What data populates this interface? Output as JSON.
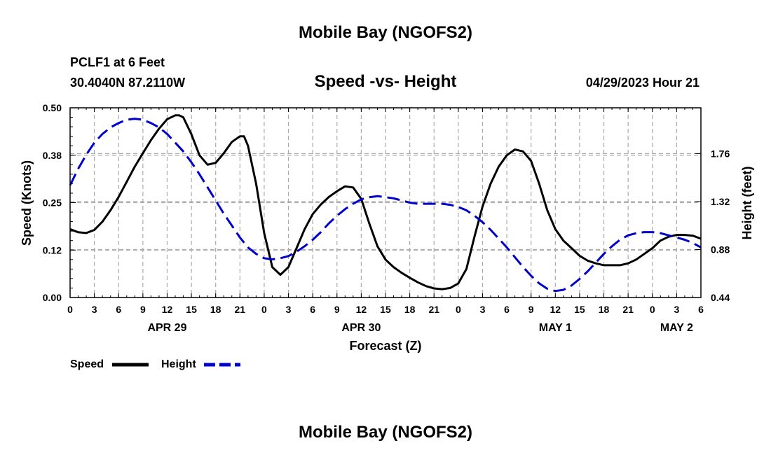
{
  "chart_data": {
    "type": "line",
    "title": "Mobile Bay (NGOFS2)",
    "subtitle": "Speed -vs- Height",
    "station": "PCLF1 at 6 Feet",
    "coords": "30.4040N  87.2110W",
    "timestamp": "04/29/2023 Hour 21",
    "xlabel": "Forecast (Z)",
    "ylabel": "Speed (Knots)",
    "ylabel_right": "Height (feet)",
    "x_range": [
      0,
      78
    ],
    "ylim": [
      0,
      0.5
    ],
    "ylim_right": [
      0.44,
      2.18
    ],
    "x_ticks": [
      {
        "x": 0,
        "label": "0"
      },
      {
        "x": 3,
        "label": "3"
      },
      {
        "x": 6,
        "label": "6"
      },
      {
        "x": 9,
        "label": "9"
      },
      {
        "x": 12,
        "label": "12"
      },
      {
        "x": 15,
        "label": "15"
      },
      {
        "x": 18,
        "label": "18"
      },
      {
        "x": 21,
        "label": "21"
      },
      {
        "x": 24,
        "label": "0"
      },
      {
        "x": 27,
        "label": "3"
      },
      {
        "x": 30,
        "label": "6"
      },
      {
        "x": 33,
        "label": "9"
      },
      {
        "x": 36,
        "label": "12"
      },
      {
        "x": 39,
        "label": "15"
      },
      {
        "x": 42,
        "label": "18"
      },
      {
        "x": 45,
        "label": "21"
      },
      {
        "x": 48,
        "label": "0"
      },
      {
        "x": 51,
        "label": "3"
      },
      {
        "x": 54,
        "label": "6"
      },
      {
        "x": 57,
        "label": "9"
      },
      {
        "x": 60,
        "label": "12"
      },
      {
        "x": 63,
        "label": "15"
      },
      {
        "x": 66,
        "label": "18"
      },
      {
        "x": 69,
        "label": "21"
      },
      {
        "x": 72,
        "label": "0"
      },
      {
        "x": 75,
        "label": "3"
      },
      {
        "x": 78,
        "label": "6"
      }
    ],
    "date_labels": [
      {
        "x": 12,
        "label": "APR 29"
      },
      {
        "x": 36,
        "label": "APR 30"
      },
      {
        "x": 60,
        "label": "MAY 1"
      },
      {
        "x": 75,
        "label": "MAY 2"
      }
    ],
    "y_ticks": [
      {
        "v": 0.0,
        "label": "0.00"
      },
      {
        "v": 0.125,
        "label": "0.12"
      },
      {
        "v": 0.25,
        "label": "0.25"
      },
      {
        "v": 0.375,
        "label": "0.38"
      },
      {
        "v": 0.5,
        "label": "0.50"
      }
    ],
    "y_ticks_right": [
      {
        "v": 0.44,
        "label": "0.44"
      },
      {
        "v": 0.88,
        "label": "0.88"
      },
      {
        "v": 1.32,
        "label": "1.32"
      },
      {
        "v": 1.76,
        "label": "1.76"
      }
    ],
    "grid": true,
    "series": [
      {
        "name": "Speed",
        "color": "#000000",
        "axis": "left",
        "dash": false,
        "x": [
          0,
          1,
          2,
          3,
          4,
          5,
          6,
          7,
          8,
          9,
          10,
          11,
          12,
          13,
          13.5,
          14,
          15,
          16,
          17,
          18,
          19,
          20,
          21,
          21.5,
          22,
          23,
          24,
          25,
          26,
          27,
          28,
          29,
          30,
          31,
          32,
          33,
          34,
          35,
          36,
          37,
          38,
          39,
          40,
          41,
          42,
          43,
          44,
          45,
          46,
          47,
          48,
          49,
          50,
          51,
          52,
          53,
          54,
          55,
          56,
          57,
          58,
          59,
          60,
          61,
          62,
          63,
          64,
          65,
          66,
          67,
          68,
          69,
          70,
          71,
          72,
          73,
          74,
          75,
          76,
          77,
          78
        ],
        "values": [
          0.18,
          0.172,
          0.17,
          0.178,
          0.2,
          0.23,
          0.265,
          0.305,
          0.345,
          0.38,
          0.415,
          0.445,
          0.47,
          0.48,
          0.48,
          0.475,
          0.43,
          0.375,
          0.35,
          0.355,
          0.38,
          0.41,
          0.425,
          0.425,
          0.4,
          0.3,
          0.17,
          0.08,
          0.06,
          0.08,
          0.13,
          0.18,
          0.22,
          0.245,
          0.265,
          0.28,
          0.293,
          0.29,
          0.26,
          0.195,
          0.135,
          0.1,
          0.08,
          0.065,
          0.052,
          0.04,
          0.03,
          0.024,
          0.022,
          0.025,
          0.037,
          0.075,
          0.16,
          0.24,
          0.3,
          0.345,
          0.375,
          0.39,
          0.385,
          0.36,
          0.3,
          0.23,
          0.18,
          0.15,
          0.13,
          0.11,
          0.097,
          0.09,
          0.085,
          0.085,
          0.085,
          0.09,
          0.1,
          0.115,
          0.13,
          0.15,
          0.16,
          0.165,
          0.165,
          0.163,
          0.155
        ]
      },
      {
        "name": "Height",
        "color": "#0000cc",
        "axis": "right",
        "dash": true,
        "x": [
          0,
          1,
          2,
          3,
          4,
          5,
          6,
          7,
          8,
          9,
          10,
          11,
          12,
          13,
          14,
          15,
          16,
          17,
          18,
          19,
          20,
          21,
          22,
          23,
          24,
          25,
          26,
          27,
          28,
          29,
          30,
          31,
          32,
          33,
          34,
          35,
          36,
          37,
          38,
          39,
          40,
          41,
          42,
          43,
          44,
          45,
          46,
          47,
          48,
          49,
          50,
          51,
          52,
          53,
          54,
          55,
          56,
          57,
          58,
          59,
          60,
          61,
          62,
          63,
          64,
          65,
          66,
          67,
          68,
          69,
          70,
          71,
          72,
          73,
          74,
          75,
          76,
          77,
          78
        ],
        "values": [
          1.47,
          1.62,
          1.75,
          1.86,
          1.94,
          2.0,
          2.04,
          2.07,
          2.08,
          2.07,
          2.04,
          2.0,
          1.94,
          1.86,
          1.78,
          1.68,
          1.57,
          1.45,
          1.33,
          1.21,
          1.1,
          0.99,
          0.9,
          0.84,
          0.8,
          0.79,
          0.8,
          0.82,
          0.86,
          0.91,
          0.97,
          1.04,
          1.12,
          1.19,
          1.25,
          1.3,
          1.34,
          1.36,
          1.37,
          1.36,
          1.35,
          1.33,
          1.31,
          1.3,
          1.3,
          1.3,
          1.3,
          1.29,
          1.27,
          1.24,
          1.19,
          1.13,
          1.06,
          0.98,
          0.9,
          0.81,
          0.72,
          0.64,
          0.57,
          0.52,
          0.5,
          0.51,
          0.55,
          0.61,
          0.68,
          0.76,
          0.84,
          0.91,
          0.97,
          1.01,
          1.03,
          1.04,
          1.04,
          1.03,
          1.01,
          0.99,
          0.97,
          0.94,
          0.9
        ]
      }
    ]
  },
  "legend": {
    "speed_label": "Speed",
    "height_label": "Height"
  },
  "footer_title": "Mobile Bay (NGOFS2)"
}
